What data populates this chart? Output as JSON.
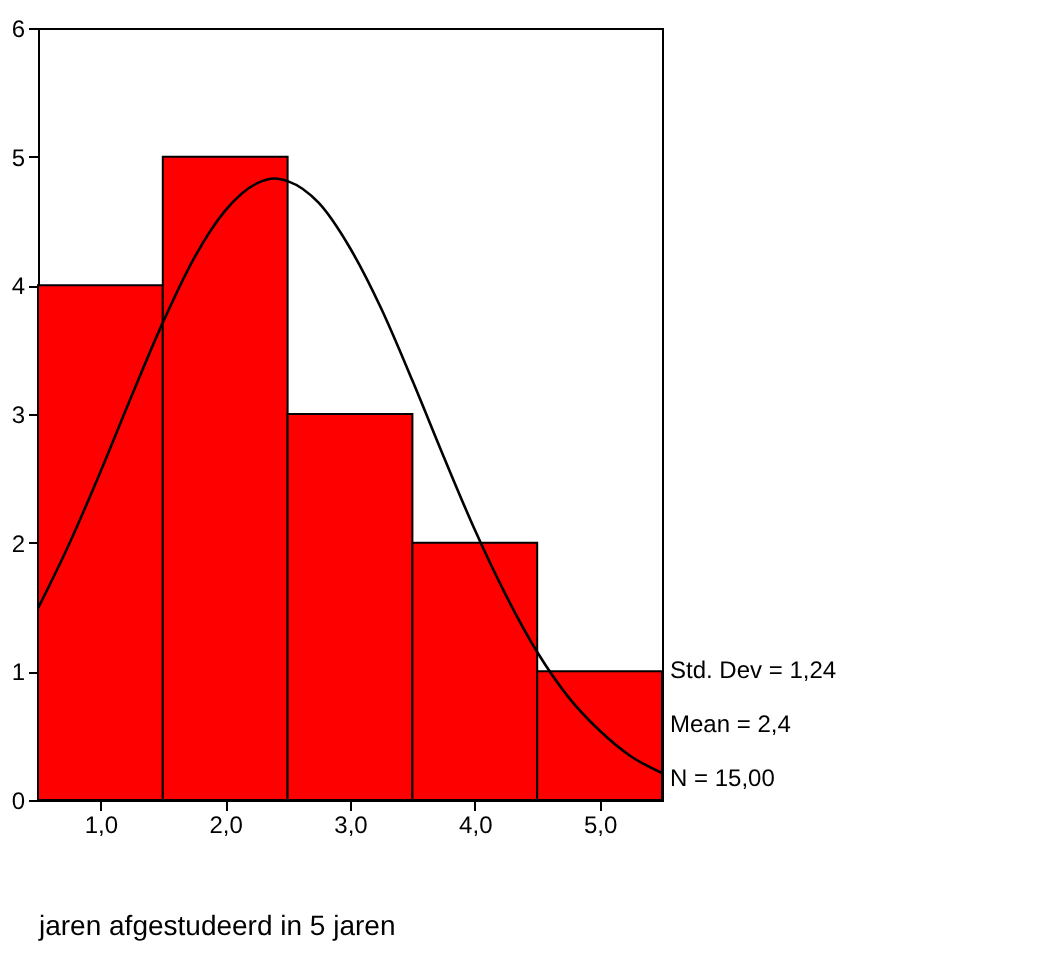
{
  "chart_data": {
    "type": "histogram",
    "xlabel": "jaren afgestudeerd in 5 jaren",
    "bins": [
      0.5,
      1.5,
      2.5,
      3.5,
      4.5,
      5.5
    ],
    "series": [
      {
        "color": "#ff0000",
        "values": [
          4,
          5,
          3,
          2,
          1
        ]
      },
      {
        "type": "line",
        "color": "#000000",
        "x": [
          0.5,
          0.75,
          1.0,
          1.25,
          1.5,
          1.75,
          2.0,
          2.25,
          2.4,
          2.5,
          2.75,
          3.0,
          3.25,
          3.5,
          3.75,
          4.0,
          4.25,
          4.5,
          4.75,
          5.0,
          5.25,
          5.5
        ],
        "values": [
          1.49,
          1.99,
          2.55,
          3.14,
          3.71,
          4.21,
          4.58,
          4.79,
          4.83,
          4.81,
          4.64,
          4.29,
          3.82,
          3.26,
          2.67,
          2.1,
          1.59,
          1.15,
          0.8,
          0.54,
          0.34,
          0.21
        ]
      }
    ],
    "xlim": [
      0.5,
      5.5
    ],
    "ylim": [
      0,
      6
    ],
    "xticks": [
      {
        "value": 1,
        "label": "1,0"
      },
      {
        "value": 2,
        "label": "2,0"
      },
      {
        "value": 3,
        "label": "3,0"
      },
      {
        "value": 4,
        "label": "4,0"
      },
      {
        "value": 5,
        "label": "5,0"
      }
    ],
    "yticks": [
      0,
      1,
      2,
      3,
      4,
      5,
      6
    ],
    "annotations": [
      "Std. Dev = 1,24",
      "Mean = 2,4",
      "N = 15,00"
    ]
  }
}
